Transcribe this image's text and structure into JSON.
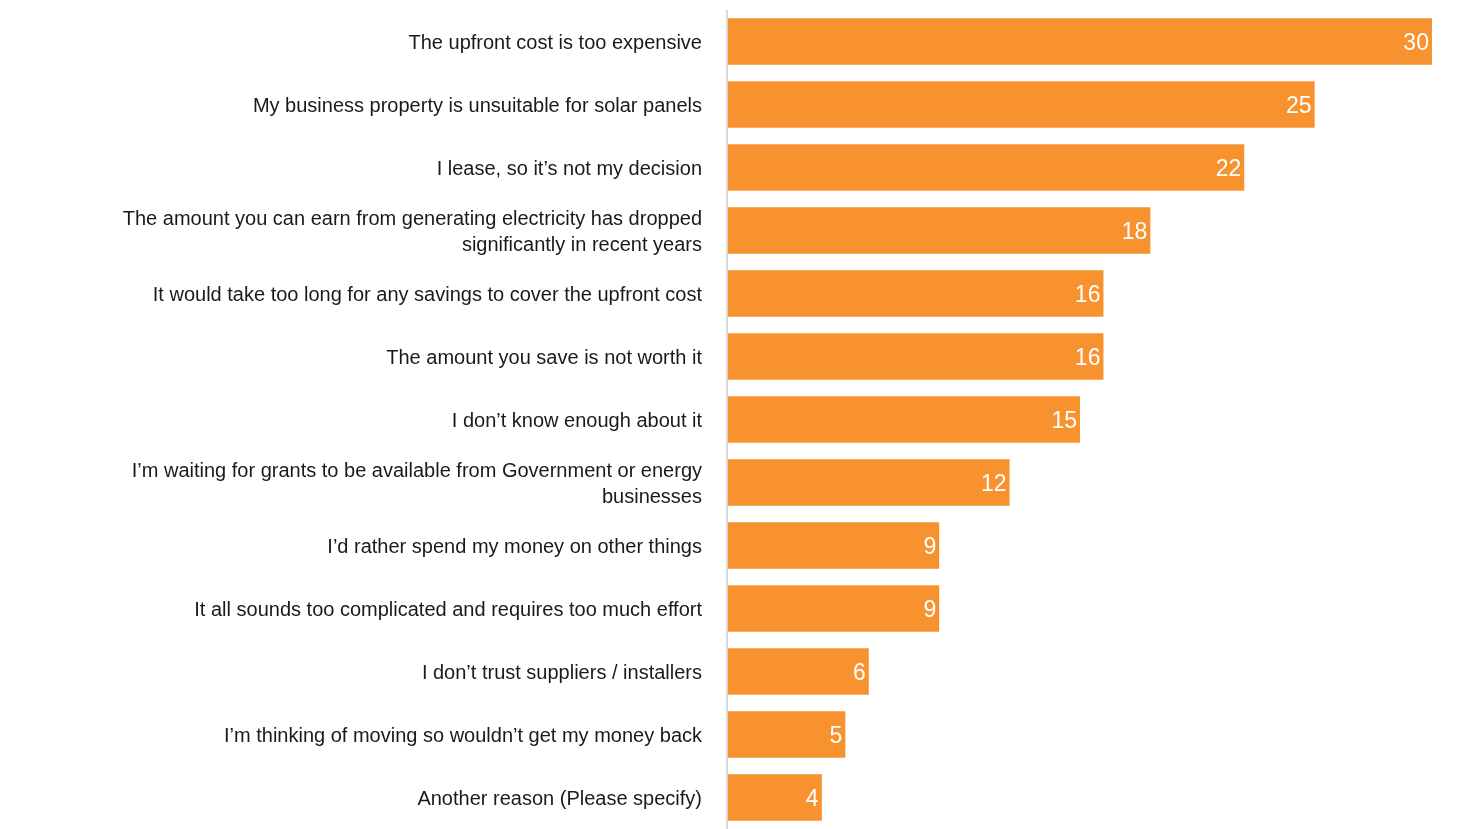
{
  "chart_data": {
    "type": "bar",
    "orientation": "horizontal",
    "categories": [
      "The upfront cost is too expensive",
      "My business property is unsuitable for solar panels",
      "I lease, so it’s not my decision",
      "The amount you can earn from generating electricity has dropped significantly in recent years",
      "It would take too long for any savings to cover the upfront cost",
      "The amount you save is not worth it",
      "I don’t know enough about it",
      "I’m waiting for grants to be available from Government or energy businesses",
      "I’d rather spend my money on other things",
      "It all sounds too complicated and requires too much effort",
      "I don’t trust suppliers / installers",
      "I’m thinking of moving so wouldn’t get my money back",
      "Another reason (Please specify)"
    ],
    "values": [
      30,
      25,
      22,
      18,
      16,
      16,
      15,
      12,
      9,
      9,
      6,
      5,
      4
    ],
    "color": "#f7922f",
    "data_labels": true,
    "grid": false,
    "tick_labels": "y"
  }
}
